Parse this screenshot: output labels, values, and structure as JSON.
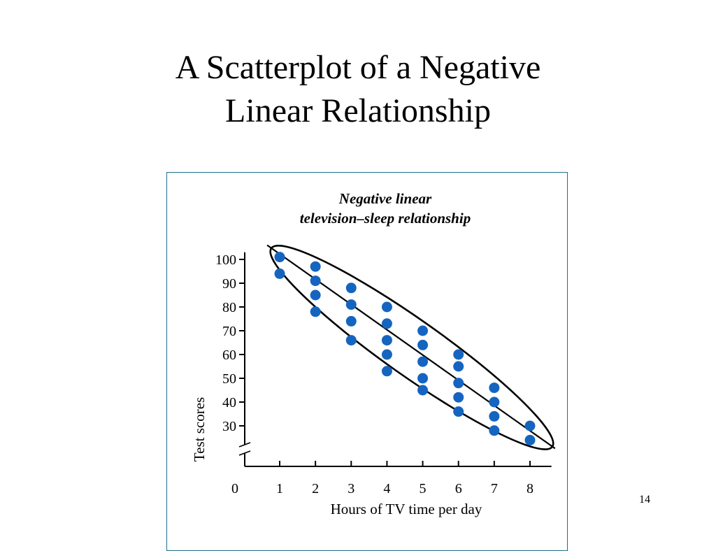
{
  "slide": {
    "title_line1": "A Scatterplot of a Negative",
    "title_line2": "Linear Relationship",
    "page_number": "14"
  },
  "colors": {
    "points": "#1565c0",
    "lines": "#000000",
    "frame": "#1f6f8b"
  },
  "chart_data": {
    "type": "scatter",
    "title_line1": "Negative linear",
    "title_line2": "television–sleep relationship",
    "xlabel": "Hours of TV time per day",
    "ylabel": "Test scores",
    "x_ticks": [
      "0",
      "1",
      "2",
      "3",
      "4",
      "5",
      "6",
      "7",
      "8"
    ],
    "y_ticks": [
      "100",
      "90",
      "80",
      "70",
      "60",
      "50",
      "40",
      "30"
    ],
    "xlim": [
      0,
      8.6
    ],
    "ylim": [
      0,
      105
    ],
    "y_axis_break": true,
    "grid": false,
    "series": [
      {
        "points": [
          {
            "x": 1,
            "y": 101
          },
          {
            "x": 1,
            "y": 94
          },
          {
            "x": 2,
            "y": 97
          },
          {
            "x": 2,
            "y": 91
          },
          {
            "x": 2,
            "y": 85
          },
          {
            "x": 2,
            "y": 78
          },
          {
            "x": 3,
            "y": 88
          },
          {
            "x": 3,
            "y": 81
          },
          {
            "x": 3,
            "y": 74
          },
          {
            "x": 3,
            "y": 66
          },
          {
            "x": 4,
            "y": 80
          },
          {
            "x": 4,
            "y": 73
          },
          {
            "x": 4,
            "y": 66
          },
          {
            "x": 4,
            "y": 60
          },
          {
            "x": 4,
            "y": 53
          },
          {
            "x": 5,
            "y": 70
          },
          {
            "x": 5,
            "y": 64
          },
          {
            "x": 5,
            "y": 57
          },
          {
            "x": 5,
            "y": 50
          },
          {
            "x": 5,
            "y": 45
          },
          {
            "x": 6,
            "y": 60
          },
          {
            "x": 6,
            "y": 55
          },
          {
            "x": 6,
            "y": 48
          },
          {
            "x": 6,
            "y": 42
          },
          {
            "x": 6,
            "y": 36
          },
          {
            "x": 7,
            "y": 46
          },
          {
            "x": 7,
            "y": 40
          },
          {
            "x": 7,
            "y": 34
          },
          {
            "x": 7,
            "y": 28
          },
          {
            "x": 8,
            "y": 30
          },
          {
            "x": 8,
            "y": 24
          }
        ]
      }
    ],
    "trend_line": {
      "from": {
        "x": 0.65,
        "y": 106
      },
      "to": {
        "x": 8.7,
        "y": 20.5
      }
    },
    "ellipse_annotation": true
  }
}
